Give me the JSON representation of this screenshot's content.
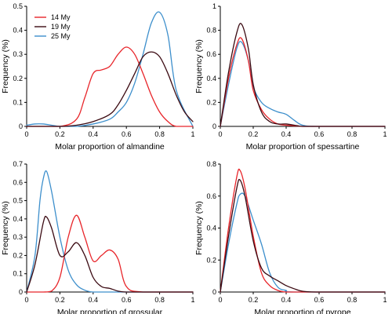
{
  "colors": {
    "14 My": "#e8252a",
    "19 My": "#3b0a12",
    "25 My": "#3d8fcc"
  },
  "legend": [
    "14 My",
    "19 My",
    "25 My"
  ],
  "chart_data": [
    {
      "type": "line",
      "xlabel": "Molar proportion of almandine",
      "ylabel": "Frequency (%)",
      "xlim": [
        0,
        1
      ],
      "ylim": [
        0,
        0.5
      ],
      "xticks": [
        "0",
        "0.2",
        "0.4",
        "0.6",
        "0.8",
        "1"
      ],
      "yticks": [
        "0",
        "0.1",
        "0.2",
        "0.3",
        "0.4",
        "0.5"
      ],
      "legend_position": "top-left",
      "series": [
        {
          "name": "14 My",
          "x": [
            0,
            0.2,
            0.3,
            0.35,
            0.4,
            0.45,
            0.5,
            0.55,
            0.6,
            0.65,
            0.7,
            0.75,
            0.8,
            0.85,
            0.9,
            1.0
          ],
          "y": [
            0,
            0,
            0.03,
            0.12,
            0.22,
            0.235,
            0.25,
            0.3,
            0.33,
            0.3,
            0.22,
            0.13,
            0.06,
            0.02,
            0,
            0
          ]
        },
        {
          "name": "19 My",
          "x": [
            0,
            0.2,
            0.3,
            0.4,
            0.5,
            0.55,
            0.6,
            0.65,
            0.7,
            0.75,
            0.8,
            0.85,
            0.9,
            0.95,
            1.0
          ],
          "y": [
            0,
            0,
            0.005,
            0.02,
            0.05,
            0.09,
            0.15,
            0.22,
            0.29,
            0.31,
            0.29,
            0.22,
            0.13,
            0.06,
            0.02
          ]
        },
        {
          "name": "25 My",
          "x": [
            0,
            0.05,
            0.1,
            0.15,
            0.2,
            0.3,
            0.4,
            0.5,
            0.55,
            0.6,
            0.65,
            0.7,
            0.75,
            0.8,
            0.85,
            0.9,
            1.0
          ],
          "y": [
            0.005,
            0.01,
            0.01,
            0.005,
            0,
            0,
            0.01,
            0.03,
            0.06,
            0.1,
            0.18,
            0.3,
            0.43,
            0.475,
            0.38,
            0.15,
            0
          ]
        }
      ]
    },
    {
      "type": "line",
      "xlabel": "Molar proportion of spessartine",
      "ylabel": "Frequency (%)",
      "xlim": [
        0,
        1
      ],
      "ylim": [
        0,
        1.0
      ],
      "xticks": [
        "0",
        "0.2",
        "0.4",
        "0.6",
        "0.8",
        "1"
      ],
      "yticks": [
        "0",
        "0.2",
        "0.4",
        "0.6",
        "0.8",
        "1"
      ],
      "series": [
        {
          "name": "14 My",
          "x": [
            0,
            0.05,
            0.1,
            0.13,
            0.17,
            0.2,
            0.25,
            0.3,
            0.35,
            0.4,
            0.45,
            0.5,
            0.6,
            1.0
          ],
          "y": [
            0,
            0.4,
            0.68,
            0.73,
            0.55,
            0.3,
            0.14,
            0.06,
            0.02,
            0.01,
            0.005,
            0,
            0,
            0
          ]
        },
        {
          "name": "19 My",
          "x": [
            0,
            0.05,
            0.1,
            0.13,
            0.17,
            0.2,
            0.25,
            0.3,
            0.35,
            0.4,
            0.45,
            0.5,
            0.6,
            1.0
          ],
          "y": [
            0,
            0.45,
            0.78,
            0.85,
            0.65,
            0.35,
            0.12,
            0.04,
            0.02,
            0.02,
            0.01,
            0,
            0,
            0
          ]
        },
        {
          "name": "25 My",
          "x": [
            0,
            0.05,
            0.1,
            0.13,
            0.17,
            0.2,
            0.25,
            0.3,
            0.35,
            0.4,
            0.45,
            0.5,
            0.6,
            1.0
          ],
          "y": [
            0,
            0.35,
            0.65,
            0.7,
            0.55,
            0.33,
            0.2,
            0.15,
            0.12,
            0.1,
            0.05,
            0.01,
            0,
            0
          ]
        }
      ]
    },
    {
      "type": "line",
      "xlabel": "Molar proportion of grossular",
      "ylabel": "Frequency (%)",
      "xlim": [
        0,
        1
      ],
      "ylim": [
        0,
        0.7
      ],
      "xticks": [
        "0",
        "0.2",
        "0.4",
        "0.6",
        "0.8",
        "1"
      ],
      "yticks": [
        "0",
        "0.1",
        "0.2",
        "0.3",
        "0.4",
        "0.5",
        "0.6",
        "0.7"
      ],
      "series": [
        {
          "name": "14 My",
          "x": [
            0,
            0.1,
            0.15,
            0.2,
            0.25,
            0.3,
            0.35,
            0.4,
            0.45,
            0.5,
            0.55,
            0.6,
            0.7,
            1.0
          ],
          "y": [
            0,
            0,
            0.005,
            0.08,
            0.3,
            0.42,
            0.3,
            0.17,
            0.2,
            0.23,
            0.18,
            0.03,
            0,
            0
          ]
        },
        {
          "name": "19 My",
          "x": [
            0,
            0.05,
            0.1,
            0.12,
            0.15,
            0.2,
            0.25,
            0.3,
            0.35,
            0.4,
            0.45,
            0.5,
            0.55,
            0.6,
            0.7,
            1.0
          ],
          "y": [
            0,
            0.15,
            0.38,
            0.41,
            0.35,
            0.2,
            0.22,
            0.27,
            0.2,
            0.08,
            0.03,
            0.02,
            0.005,
            0,
            0,
            0
          ]
        },
        {
          "name": "25 My",
          "x": [
            0,
            0.05,
            0.08,
            0.1,
            0.12,
            0.15,
            0.2,
            0.25,
            0.3,
            0.35,
            0.4,
            0.5,
            1.0
          ],
          "y": [
            0,
            0.2,
            0.5,
            0.62,
            0.66,
            0.55,
            0.3,
            0.12,
            0.04,
            0.01,
            0,
            0,
            0
          ]
        }
      ]
    },
    {
      "type": "line",
      "xlabel": "Molar proportion of pyrope",
      "ylabel": "Frequency (%)",
      "xlim": [
        0,
        1
      ],
      "ylim": [
        0,
        0.8
      ],
      "xticks": [
        "0",
        "0.2",
        "0.4",
        "0.6",
        "0.8",
        "1"
      ],
      "yticks": [
        "0",
        "0.2",
        "0.4",
        "0.6",
        "0.8"
      ],
      "series": [
        {
          "name": "14 My",
          "x": [
            0,
            0.05,
            0.1,
            0.12,
            0.15,
            0.2,
            0.25,
            0.3,
            0.35,
            0.4,
            0.5,
            1.0
          ],
          "y": [
            0,
            0.4,
            0.72,
            0.76,
            0.65,
            0.35,
            0.12,
            0.04,
            0.01,
            0,
            0,
            0
          ]
        },
        {
          "name": "19 My",
          "x": [
            0,
            0.05,
            0.1,
            0.12,
            0.15,
            0.2,
            0.25,
            0.3,
            0.35,
            0.4,
            0.45,
            0.5,
            0.6,
            1.0
          ],
          "y": [
            0,
            0.35,
            0.65,
            0.7,
            0.6,
            0.32,
            0.15,
            0.1,
            0.07,
            0.04,
            0.02,
            0.005,
            0,
            0
          ]
        },
        {
          "name": "25 My",
          "x": [
            0,
            0.05,
            0.1,
            0.12,
            0.15,
            0.2,
            0.25,
            0.3,
            0.35,
            0.4,
            0.45,
            1.0
          ],
          "y": [
            0,
            0.3,
            0.55,
            0.61,
            0.6,
            0.45,
            0.3,
            0.12,
            0.03,
            0.01,
            0,
            0
          ]
        }
      ]
    }
  ]
}
